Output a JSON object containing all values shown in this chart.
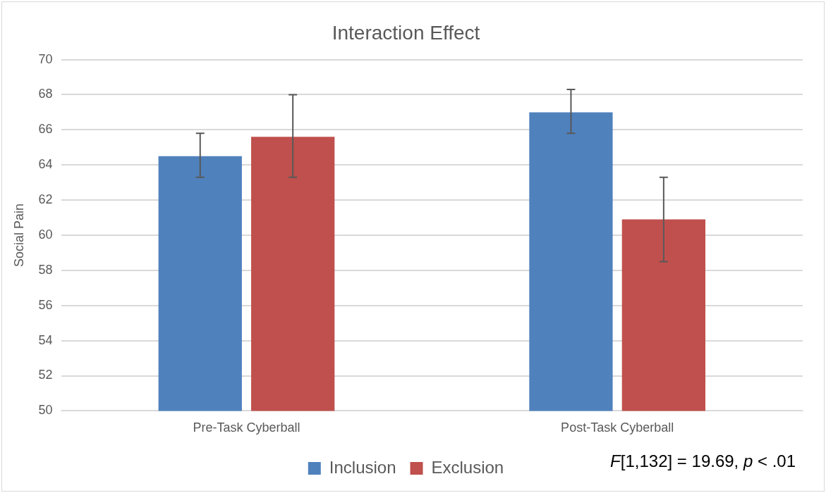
{
  "chart_data": {
    "type": "bar",
    "title": "Interaction Effect",
    "ylabel": "Social Pain",
    "categories": [
      "Pre-Task Cyberball",
      "Post-Task Cyberball"
    ],
    "series": [
      {
        "name": "Inclusion",
        "color": "#4f81bd",
        "values": [
          64.5,
          67.0
        ],
        "errors": [
          [
            63.3,
            65.8
          ],
          [
            65.8,
            68.3
          ]
        ]
      },
      {
        "name": "Exclusion",
        "color": "#c0504d",
        "values": [
          65.6,
          60.9
        ],
        "errors": [
          [
            63.3,
            68.0
          ],
          2.4
        ]
      }
    ],
    "ylim": [
      50,
      70
    ],
    "yticks": [
      50,
      52,
      54,
      56,
      58,
      60,
      62,
      64,
      66,
      68,
      70
    ],
    "grid": "y",
    "legend": "bottom",
    "annotations": [
      "F[1,132] = 19.69, p < .01"
    ]
  }
}
